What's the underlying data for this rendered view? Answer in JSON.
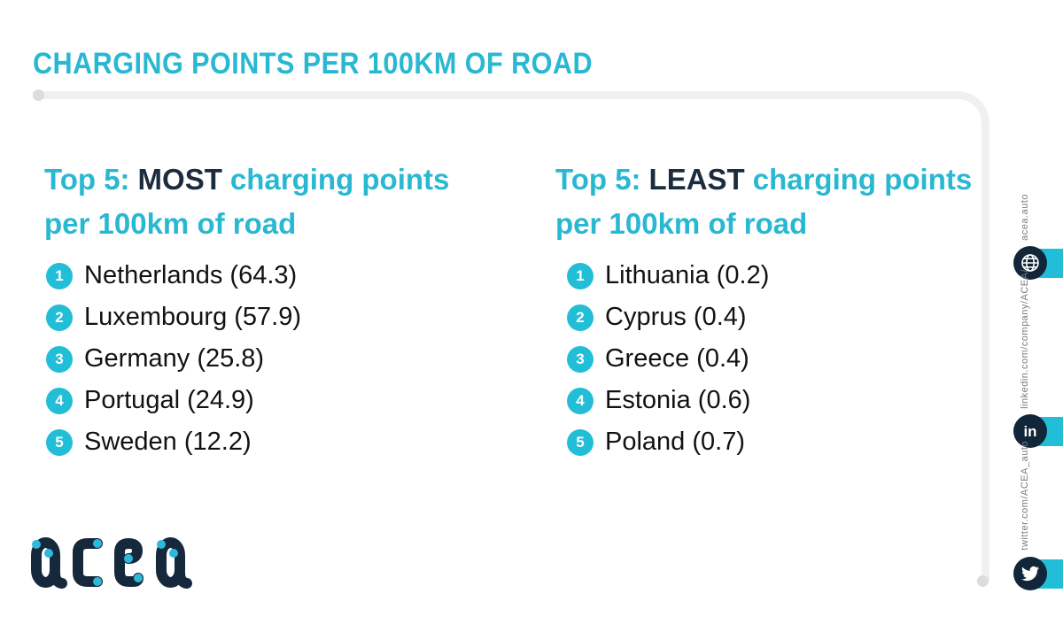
{
  "header": {
    "title": "CHARGING POINTS PER 100KM OF ROAD"
  },
  "panels": {
    "most": {
      "prefix": "Top 5:",
      "emphasis": "MOST",
      "suffix": "charging points",
      "line2": "per 100km of road",
      "items": [
        {
          "rank": "1",
          "country": "Netherlands",
          "value": "64.3"
        },
        {
          "rank": "2",
          "country": "Luxembourg",
          "value": "57.9"
        },
        {
          "rank": "3",
          "country": "Germany",
          "value": "25.8"
        },
        {
          "rank": "4",
          "country": "Portugal",
          "value": "24.9"
        },
        {
          "rank": "5",
          "country": "Sweden",
          "value": "12.2"
        }
      ]
    },
    "least": {
      "prefix": "Top 5:",
      "emphasis": "LEAST",
      "suffix": "charging points",
      "line2": "per 100km of road",
      "items": [
        {
          "rank": "1",
          "country": "Lithuania",
          "value": "0.2"
        },
        {
          "rank": "2",
          "country": "Cyprus",
          "value": "0.4"
        },
        {
          "rank": "3",
          "country": "Greece",
          "value": "0.4"
        },
        {
          "rank": "4",
          "country": "Estonia",
          "value": "0.6"
        },
        {
          "rank": "5",
          "country": "Poland",
          "value": "0.7"
        }
      ]
    }
  },
  "sidebar": {
    "links": [
      {
        "label": "acea.auto",
        "icon": "globe-icon"
      },
      {
        "label": "linkedin.com/company/ACEA/",
        "icon": "linkedin-icon"
      },
      {
        "label": "twitter.com/ACEA_auto",
        "icon": "twitter-icon"
      }
    ]
  },
  "logo": {
    "text": "acea"
  },
  "colors": {
    "accent_cyan": "#29b8d1",
    "badge_cyan": "#22bed8",
    "navy": "#1b2c3e",
    "icon_navy": "#12263a",
    "line_gray": "#f0f0f0",
    "dot_gray": "#dcdcdc",
    "label_gray": "#7c7c7c"
  },
  "chart_data": [
    {
      "type": "table",
      "title": "Top 5: MOST charging points per 100km of road",
      "categories": [
        "Netherlands",
        "Luxembourg",
        "Germany",
        "Portugal",
        "Sweden"
      ],
      "values": [
        64.3,
        57.9,
        25.8,
        24.9,
        12.2
      ],
      "unit": "charging points per 100km of road"
    },
    {
      "type": "table",
      "title": "Top 5: LEAST charging points per 100km of road",
      "categories": [
        "Lithuania",
        "Cyprus",
        "Greece",
        "Estonia",
        "Poland"
      ],
      "values": [
        0.2,
        0.4,
        0.4,
        0.6,
        0.7
      ],
      "unit": "charging points per 100km of road"
    }
  ]
}
